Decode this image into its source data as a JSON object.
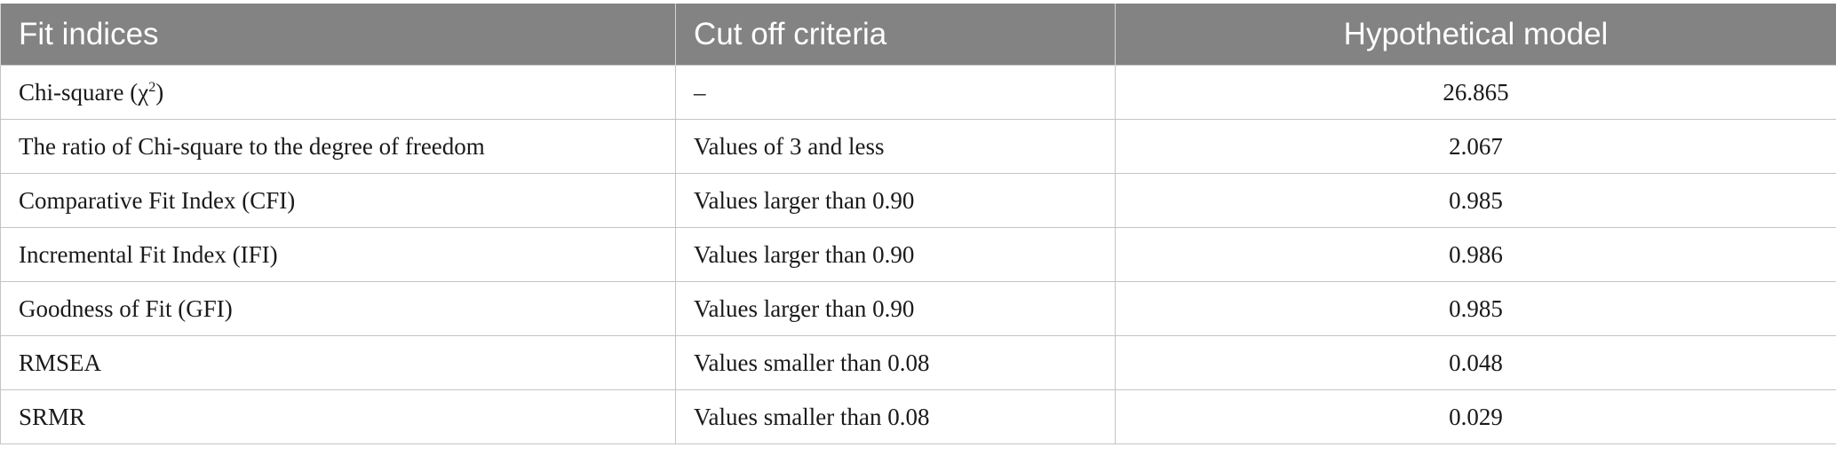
{
  "table": {
    "headers": [
      "Fit indices",
      "Cut off criteria",
      "Hypothetical model"
    ],
    "rows": [
      {
        "index": "Chi-square (χ",
        "index_sup": "2",
        "index_tail": ")",
        "criteria": "–",
        "value": "26.865"
      },
      {
        "index": "The ratio of Chi-square to the degree of freedom",
        "criteria": "Values of 3 and less",
        "value": "2.067"
      },
      {
        "index": "Comparative Fit Index (CFI)",
        "criteria": "Values larger than 0.90",
        "value": "0.985"
      },
      {
        "index": "Incremental Fit Index (IFI)",
        "criteria": "Values larger than 0.90",
        "value": "0.986"
      },
      {
        "index": "Goodness of Fit (GFI)",
        "criteria": "Values larger than 0.90",
        "value": "0.985"
      },
      {
        "index": "RMSEA",
        "criteria": "Values smaller than 0.08",
        "value": "0.048"
      },
      {
        "index": "SRMR",
        "criteria": "Values smaller than 0.08",
        "value": "0.029"
      }
    ]
  },
  "colors": {
    "header_bg": "#838383",
    "header_text": "#ffffff",
    "border": "#c4c4c4"
  }
}
